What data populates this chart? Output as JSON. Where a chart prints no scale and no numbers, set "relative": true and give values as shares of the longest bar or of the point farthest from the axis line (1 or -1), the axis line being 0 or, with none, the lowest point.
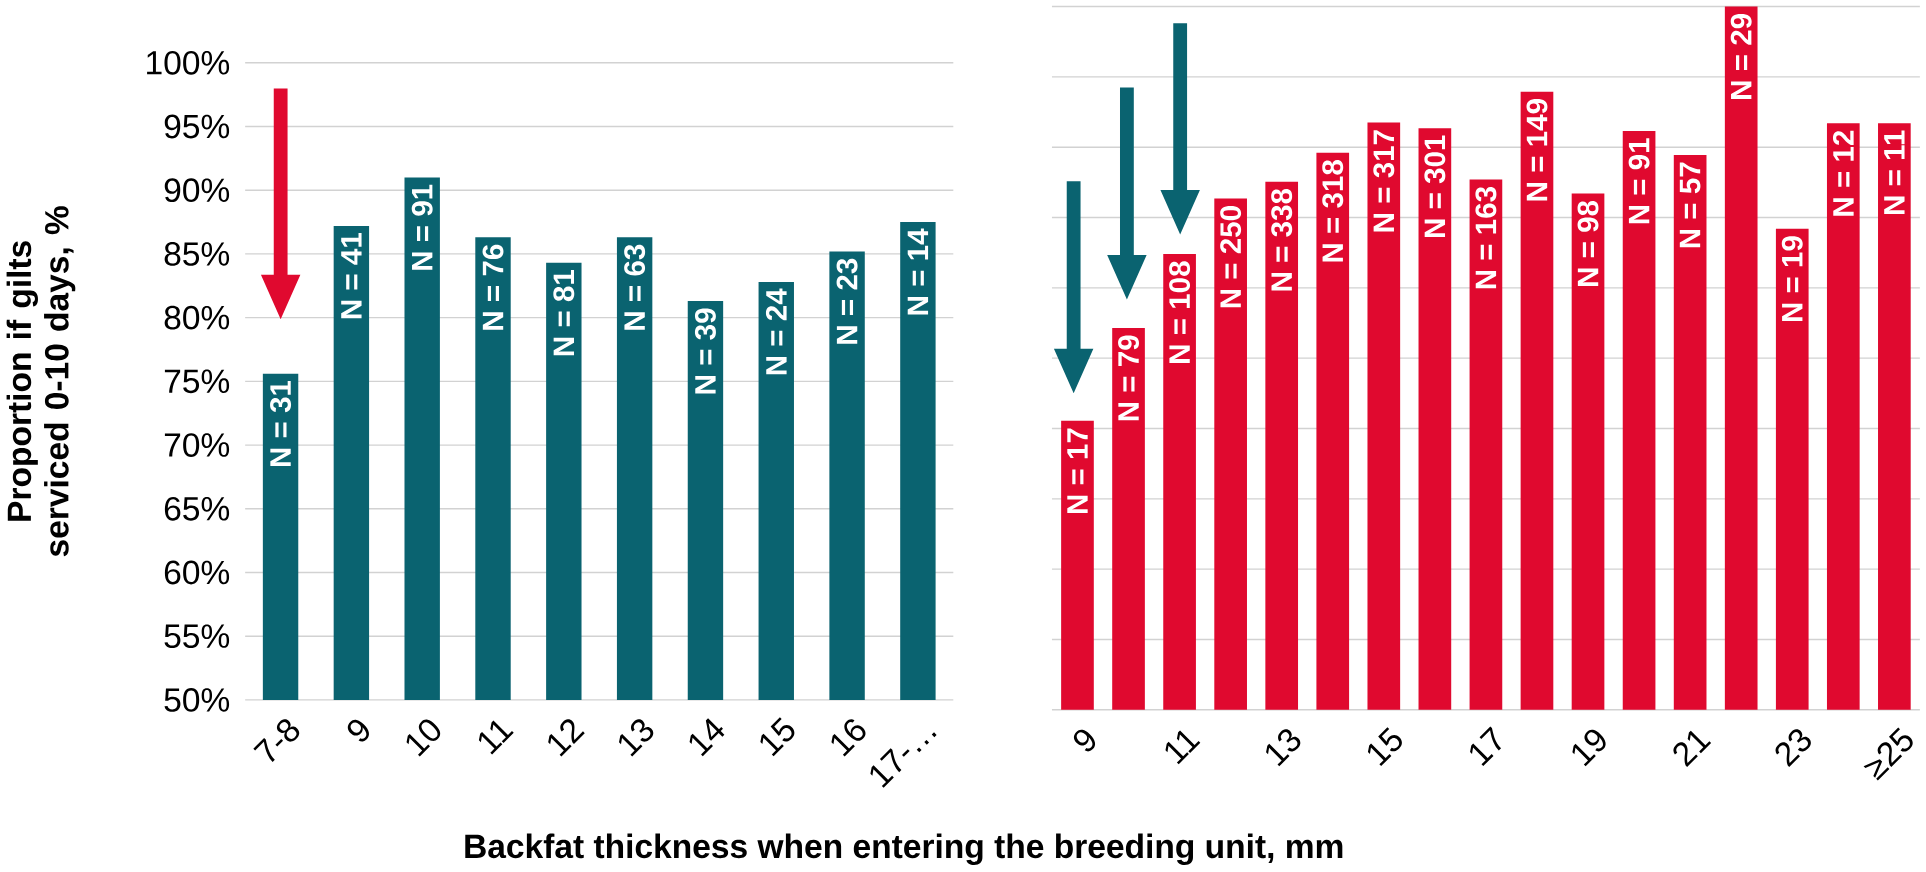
{
  "chart_data": [
    {
      "type": "bar",
      "color": "#0a6370",
      "grid": "y",
      "ylabel": "Proportion if gilts serviced 0-10 days, %",
      "xlabel": "Backfat thickness when entering the breeding unit, mm",
      "categories": [
        "7-8",
        "9",
        "10",
        "11",
        "12",
        "13",
        "14",
        "15",
        "16",
        "17-…"
      ],
      "values": [
        75.6,
        87.2,
        91.0,
        86.3,
        84.3,
        86.3,
        81.3,
        82.8,
        85.2,
        87.5
      ],
      "annotations": [
        "N = 31",
        "N = 41",
        "N = 91",
        "N = 76",
        "N = 81",
        "N = 63",
        "N = 39",
        "N = 24",
        "N = 23",
        "N = 14"
      ],
      "ylim": [
        50,
        100
      ],
      "yticks": [
        {
          "value": 50,
          "label": "50%"
        },
        {
          "value": 55,
          "label": "55%"
        },
        {
          "value": 60,
          "label": "60%"
        },
        {
          "value": 65,
          "label": "65%"
        },
        {
          "value": 70,
          "label": "70%"
        },
        {
          "value": 75,
          "label": "75%"
        },
        {
          "value": 80,
          "label": "80%"
        },
        {
          "value": 85,
          "label": "85%"
        },
        {
          "value": 90,
          "label": "90%"
        },
        {
          "value": 95,
          "label": "95%"
        },
        {
          "value": 100,
          "label": "100%"
        }
      ]
    },
    {
      "type": "bar",
      "color": "#e0092f",
      "grid": "y",
      "relative": true,
      "categories": [
        "9",
        null,
        "11",
        null,
        "13",
        null,
        "15",
        null,
        "17",
        null,
        "19",
        null,
        "21",
        null,
        "23",
        null,
        "≥25"
      ],
      "values": [
        0.411,
        0.543,
        0.648,
        0.727,
        0.751,
        0.792,
        0.835,
        0.827,
        0.754,
        0.879,
        0.734,
        0.823,
        0.789,
        1,
        0.684,
        0.834,
        0.834
      ],
      "annotations": [
        "N = 17",
        "N = 79",
        "N = 108",
        "N = 250",
        "N = 338",
        "N = 318",
        "N = 317",
        "N = 301",
        "N = 163",
        "N = 149",
        "N = 98",
        "N = 91",
        "N = 57",
        "N = 29",
        "N = 19",
        "N = 12",
        "N = 11"
      ]
    }
  ]
}
